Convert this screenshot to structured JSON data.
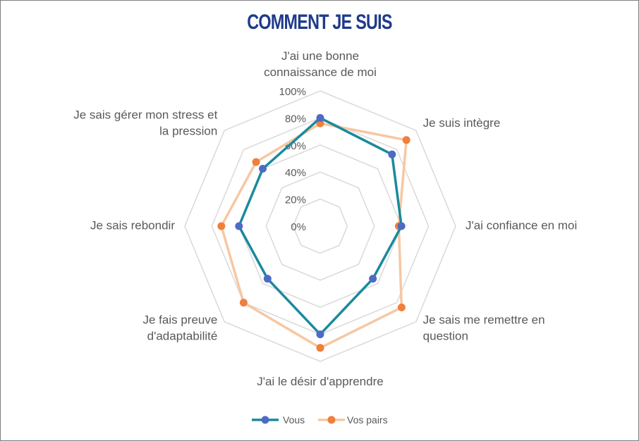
{
  "chart_data": {
    "type": "radar",
    "title": "COMMENT JE SUIS",
    "categories": [
      [
        "J'ai une bonne",
        "connaissance de moi"
      ],
      [
        "Je suis intègre"
      ],
      [
        "J'ai confiance en moi"
      ],
      [
        "Je sais me remettre en",
        "question"
      ],
      [
        "J'ai le désir d'apprendre"
      ],
      [
        "Je fais preuve",
        "d'adaptabilité"
      ],
      [
        "Je sais rebondir"
      ],
      [
        "Je sais gérer mon stress et",
        "la pression"
      ]
    ],
    "ticks": [
      "0%",
      "20%",
      "40%",
      "60%",
      "80%",
      "100%"
    ],
    "rlim": [
      0,
      100
    ],
    "grid": true,
    "legend_position": "bottom",
    "series": [
      {
        "name": "Vous",
        "values": [
          80,
          75,
          60,
          55,
          80,
          55,
          60,
          60
        ],
        "line_color": "#1a8a9c",
        "marker_color": "#4f6ac6"
      },
      {
        "name": "Vos pairs",
        "values": [
          76,
          90,
          58,
          85,
          90,
          80,
          73,
          67
        ],
        "line_color": "#f7c7a3",
        "marker_color": "#ef7f3a"
      }
    ]
  }
}
